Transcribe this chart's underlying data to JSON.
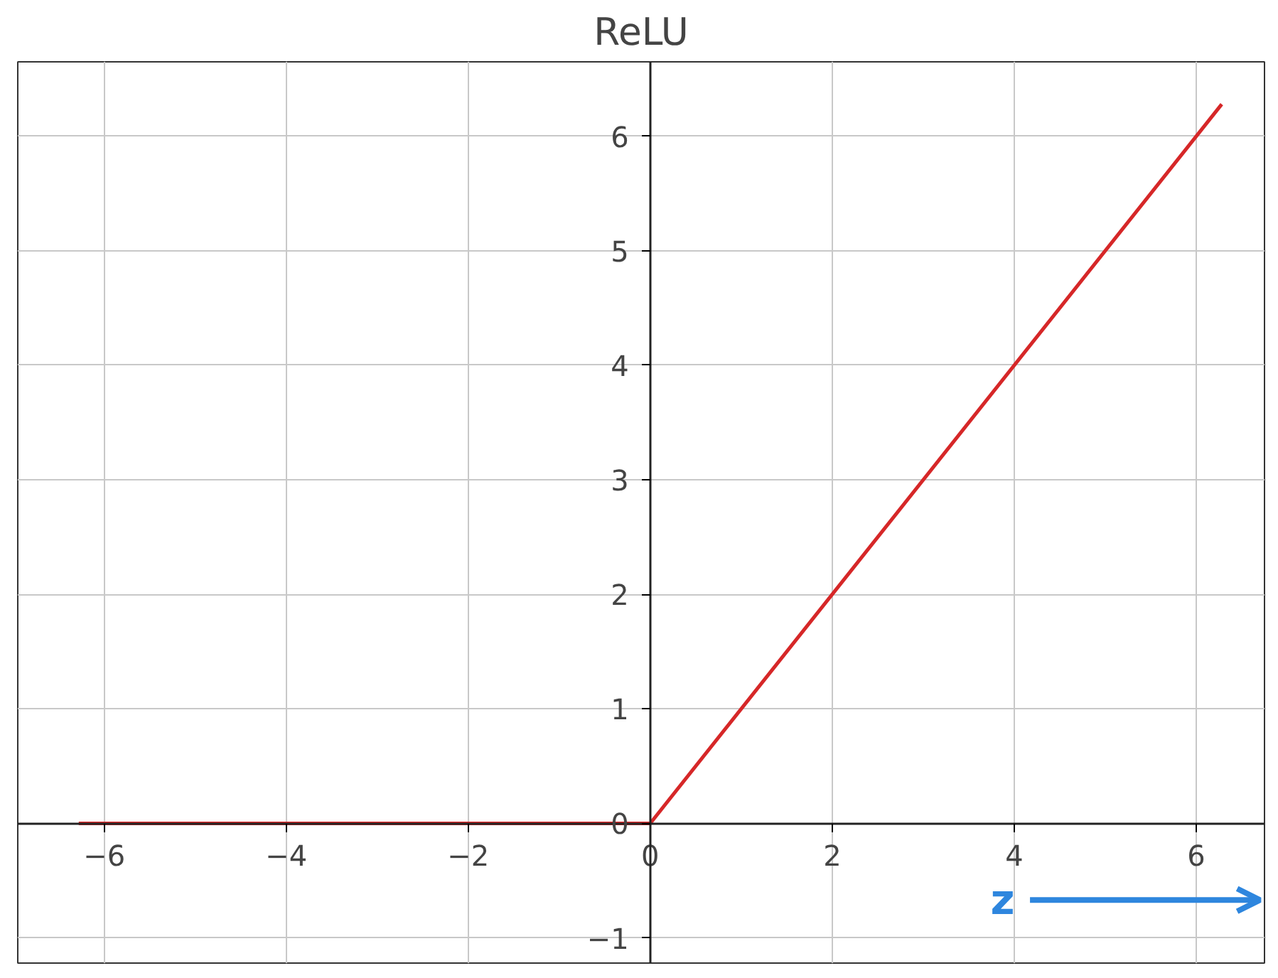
{
  "chart_data": {
    "type": "line",
    "title": "ReLU",
    "x": [
      -6.28,
      0,
      6.28
    ],
    "series": [
      {
        "color": "#d62728",
        "values": [
          0,
          0,
          6.28
        ]
      }
    ],
    "xlim": [
      -6.95,
      6.75
    ],
    "ylim": [
      -1.22,
      6.65
    ],
    "xticks": [
      -6,
      -4,
      -2,
      0,
      2,
      4,
      6
    ],
    "yticks": [
      -1,
      0,
      1,
      2,
      3,
      4,
      5,
      6
    ],
    "grid": true,
    "marker": "none",
    "line_style": "solid",
    "annotations": [
      "z"
    ]
  }
}
